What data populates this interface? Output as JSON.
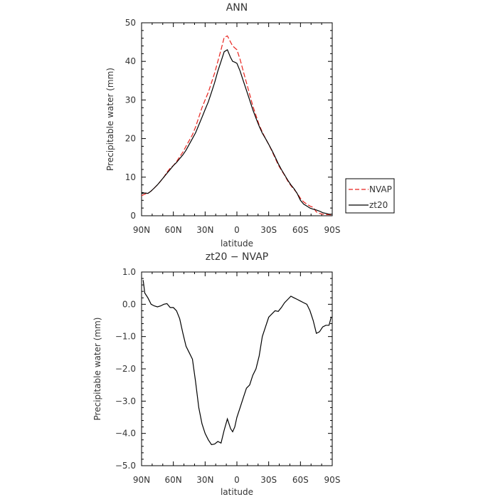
{
  "chart_data": [
    {
      "type": "line",
      "title": "ANN",
      "xlabel": "latitude",
      "ylabel": "Precipitable water (mm)",
      "xlim": [
        90,
        -90
      ],
      "ylim": [
        0,
        50
      ],
      "x_tick_values": [
        90,
        60,
        30,
        0,
        -30,
        -60,
        -90
      ],
      "x_tick_labels": [
        "90N",
        "60N",
        "30N",
        "0",
        "30S",
        "60S",
        "90S"
      ],
      "y_tick_values": [
        0,
        10,
        20,
        30,
        40,
        50
      ],
      "y_tick_labels": [
        "0",
        "10",
        "20",
        "30",
        "40",
        "50"
      ],
      "legend_position": "right",
      "grid": false,
      "series": [
        {
          "name": "NVAP",
          "color": "#e8221c",
          "dash": "dashed",
          "x": [
            90,
            87,
            84,
            81,
            78,
            75,
            72,
            69,
            66,
            63,
            60,
            57,
            54,
            51,
            48,
            45,
            42,
            39,
            36,
            33,
            30,
            27,
            24,
            21,
            18,
            15,
            12,
            9,
            6,
            4,
            2,
            0,
            -3,
            -6,
            -9,
            -12,
            -15,
            -18,
            -21,
            -24,
            -27,
            -30,
            -33,
            -36,
            -39,
            -42,
            -45,
            -48,
            -51,
            -54,
            -57,
            -60,
            -63,
            -66,
            -69,
            -72,
            -75,
            -78,
            -81,
            -84,
            -87,
            -90
          ],
          "y": [
            5.2,
            5.6,
            5.8,
            6.4,
            7.2,
            8.0,
            9.0,
            10.0,
            11.3,
            12.3,
            13.0,
            14.0,
            15.3,
            16.5,
            18.0,
            19.5,
            21.0,
            23.0,
            25.5,
            28.0,
            30.0,
            32.0,
            34.5,
            37.0,
            40.0,
            43.0,
            46.2,
            46.6,
            45.0,
            44.0,
            43.5,
            43.0,
            40.5,
            37.5,
            34.5,
            31.5,
            28.5,
            26.0,
            23.5,
            21.7,
            20.0,
            18.5,
            16.8,
            15.0,
            13.2,
            11.8,
            10.5,
            9.0,
            7.8,
            6.8,
            5.8,
            4.5,
            3.6,
            3.0,
            2.5,
            2.2,
            1.0,
            0.6,
            0.4,
            0.3,
            0.3,
            0.2
          ]
        },
        {
          "name": "zt20",
          "color": "#000000",
          "dash": "solid",
          "x": [
            90,
            87,
            84,
            81,
            78,
            75,
            72,
            69,
            66,
            63,
            60,
            57,
            54,
            51,
            48,
            45,
            42,
            39,
            36,
            33,
            30,
            27,
            24,
            21,
            18,
            15,
            12,
            9,
            6,
            4,
            2,
            0,
            -3,
            -6,
            -9,
            -12,
            -15,
            -18,
            -21,
            -24,
            -27,
            -30,
            -33,
            -36,
            -39,
            -42,
            -45,
            -48,
            -51,
            -54,
            -57,
            -60,
            -63,
            -66,
            -69,
            -72,
            -75,
            -78,
            -81,
            -84,
            -87,
            -90
          ],
          "y": [
            5.8,
            5.9,
            5.8,
            6.4,
            7.2,
            8.0,
            9.0,
            10.0,
            11.0,
            12.0,
            13.0,
            13.8,
            14.8,
            15.8,
            17.0,
            18.5,
            20.0,
            21.5,
            23.5,
            25.5,
            27.5,
            29.5,
            32.0,
            34.5,
            37.5,
            40.0,
            42.5,
            43.0,
            41.0,
            40.0,
            39.8,
            39.5,
            37.5,
            35.0,
            32.5,
            30.0,
            27.5,
            25.3,
            23.2,
            21.4,
            20.0,
            18.5,
            17.0,
            15.3,
            13.5,
            12.0,
            10.6,
            9.2,
            8.0,
            7.0,
            5.7,
            4.0,
            3.0,
            2.5,
            2.0,
            1.7,
            1.5,
            1.2,
            0.8,
            0.6,
            0.4,
            0.4
          ]
        }
      ]
    },
    {
      "type": "line",
      "title": "zt20 − NVAP",
      "xlabel": "latitude",
      "ylabel": "Precipitable water (mm)",
      "xlim": [
        90,
        -90
      ],
      "ylim": [
        -5,
        1
      ],
      "x_tick_values": [
        90,
        60,
        30,
        0,
        -30,
        -60,
        -90
      ],
      "x_tick_labels": [
        "90N",
        "60N",
        "30N",
        "0",
        "30S",
        "60S",
        "90S"
      ],
      "y_tick_values": [
        1,
        0,
        -1,
        -2,
        -3,
        -4,
        -5
      ],
      "y_tick_labels": [
        "1.0",
        "0.0",
        "−1.0",
        "−2.0",
        "−3.0",
        "−4.0",
        "−5.0"
      ],
      "grid": false,
      "series": [
        {
          "color": "#000000",
          "dash": "solid",
          "x": [
            88.5,
            87,
            84,
            81,
            78,
            75,
            72,
            69,
            66,
            63,
            60,
            57,
            54,
            51,
            48,
            45,
            42,
            39,
            36,
            33,
            30,
            27,
            24,
            21,
            18,
            15,
            12,
            9,
            6,
            4,
            2,
            0,
            -3,
            -6,
            -9,
            -12,
            -15,
            -18,
            -21,
            -24,
            -27,
            -30,
            -33,
            -36,
            -39,
            -42,
            -45,
            -48,
            -51,
            -54,
            -57,
            -60,
            -63,
            -66,
            -69,
            -72,
            -75,
            -78,
            -81,
            -84,
            -87,
            -89
          ],
          "y": [
            0.75,
            0.35,
            0.2,
            0.0,
            -0.05,
            -0.08,
            -0.05,
            0.0,
            0.02,
            -0.1,
            -0.1,
            -0.2,
            -0.45,
            -0.9,
            -1.3,
            -1.5,
            -1.7,
            -2.4,
            -3.2,
            -3.7,
            -4.0,
            -4.2,
            -4.35,
            -4.33,
            -4.25,
            -4.3,
            -3.9,
            -3.55,
            -3.85,
            -3.95,
            -3.8,
            -3.5,
            -3.2,
            -2.9,
            -2.6,
            -2.5,
            -2.2,
            -2.0,
            -1.6,
            -1.0,
            -0.7,
            -0.4,
            -0.3,
            -0.2,
            -0.22,
            -0.1,
            0.05,
            0.15,
            0.25,
            0.2,
            0.15,
            0.1,
            0.05,
            0.0,
            -0.2,
            -0.5,
            -0.9,
            -0.85,
            -0.7,
            -0.65,
            -0.65,
            -0.4
          ]
        }
      ]
    }
  ]
}
